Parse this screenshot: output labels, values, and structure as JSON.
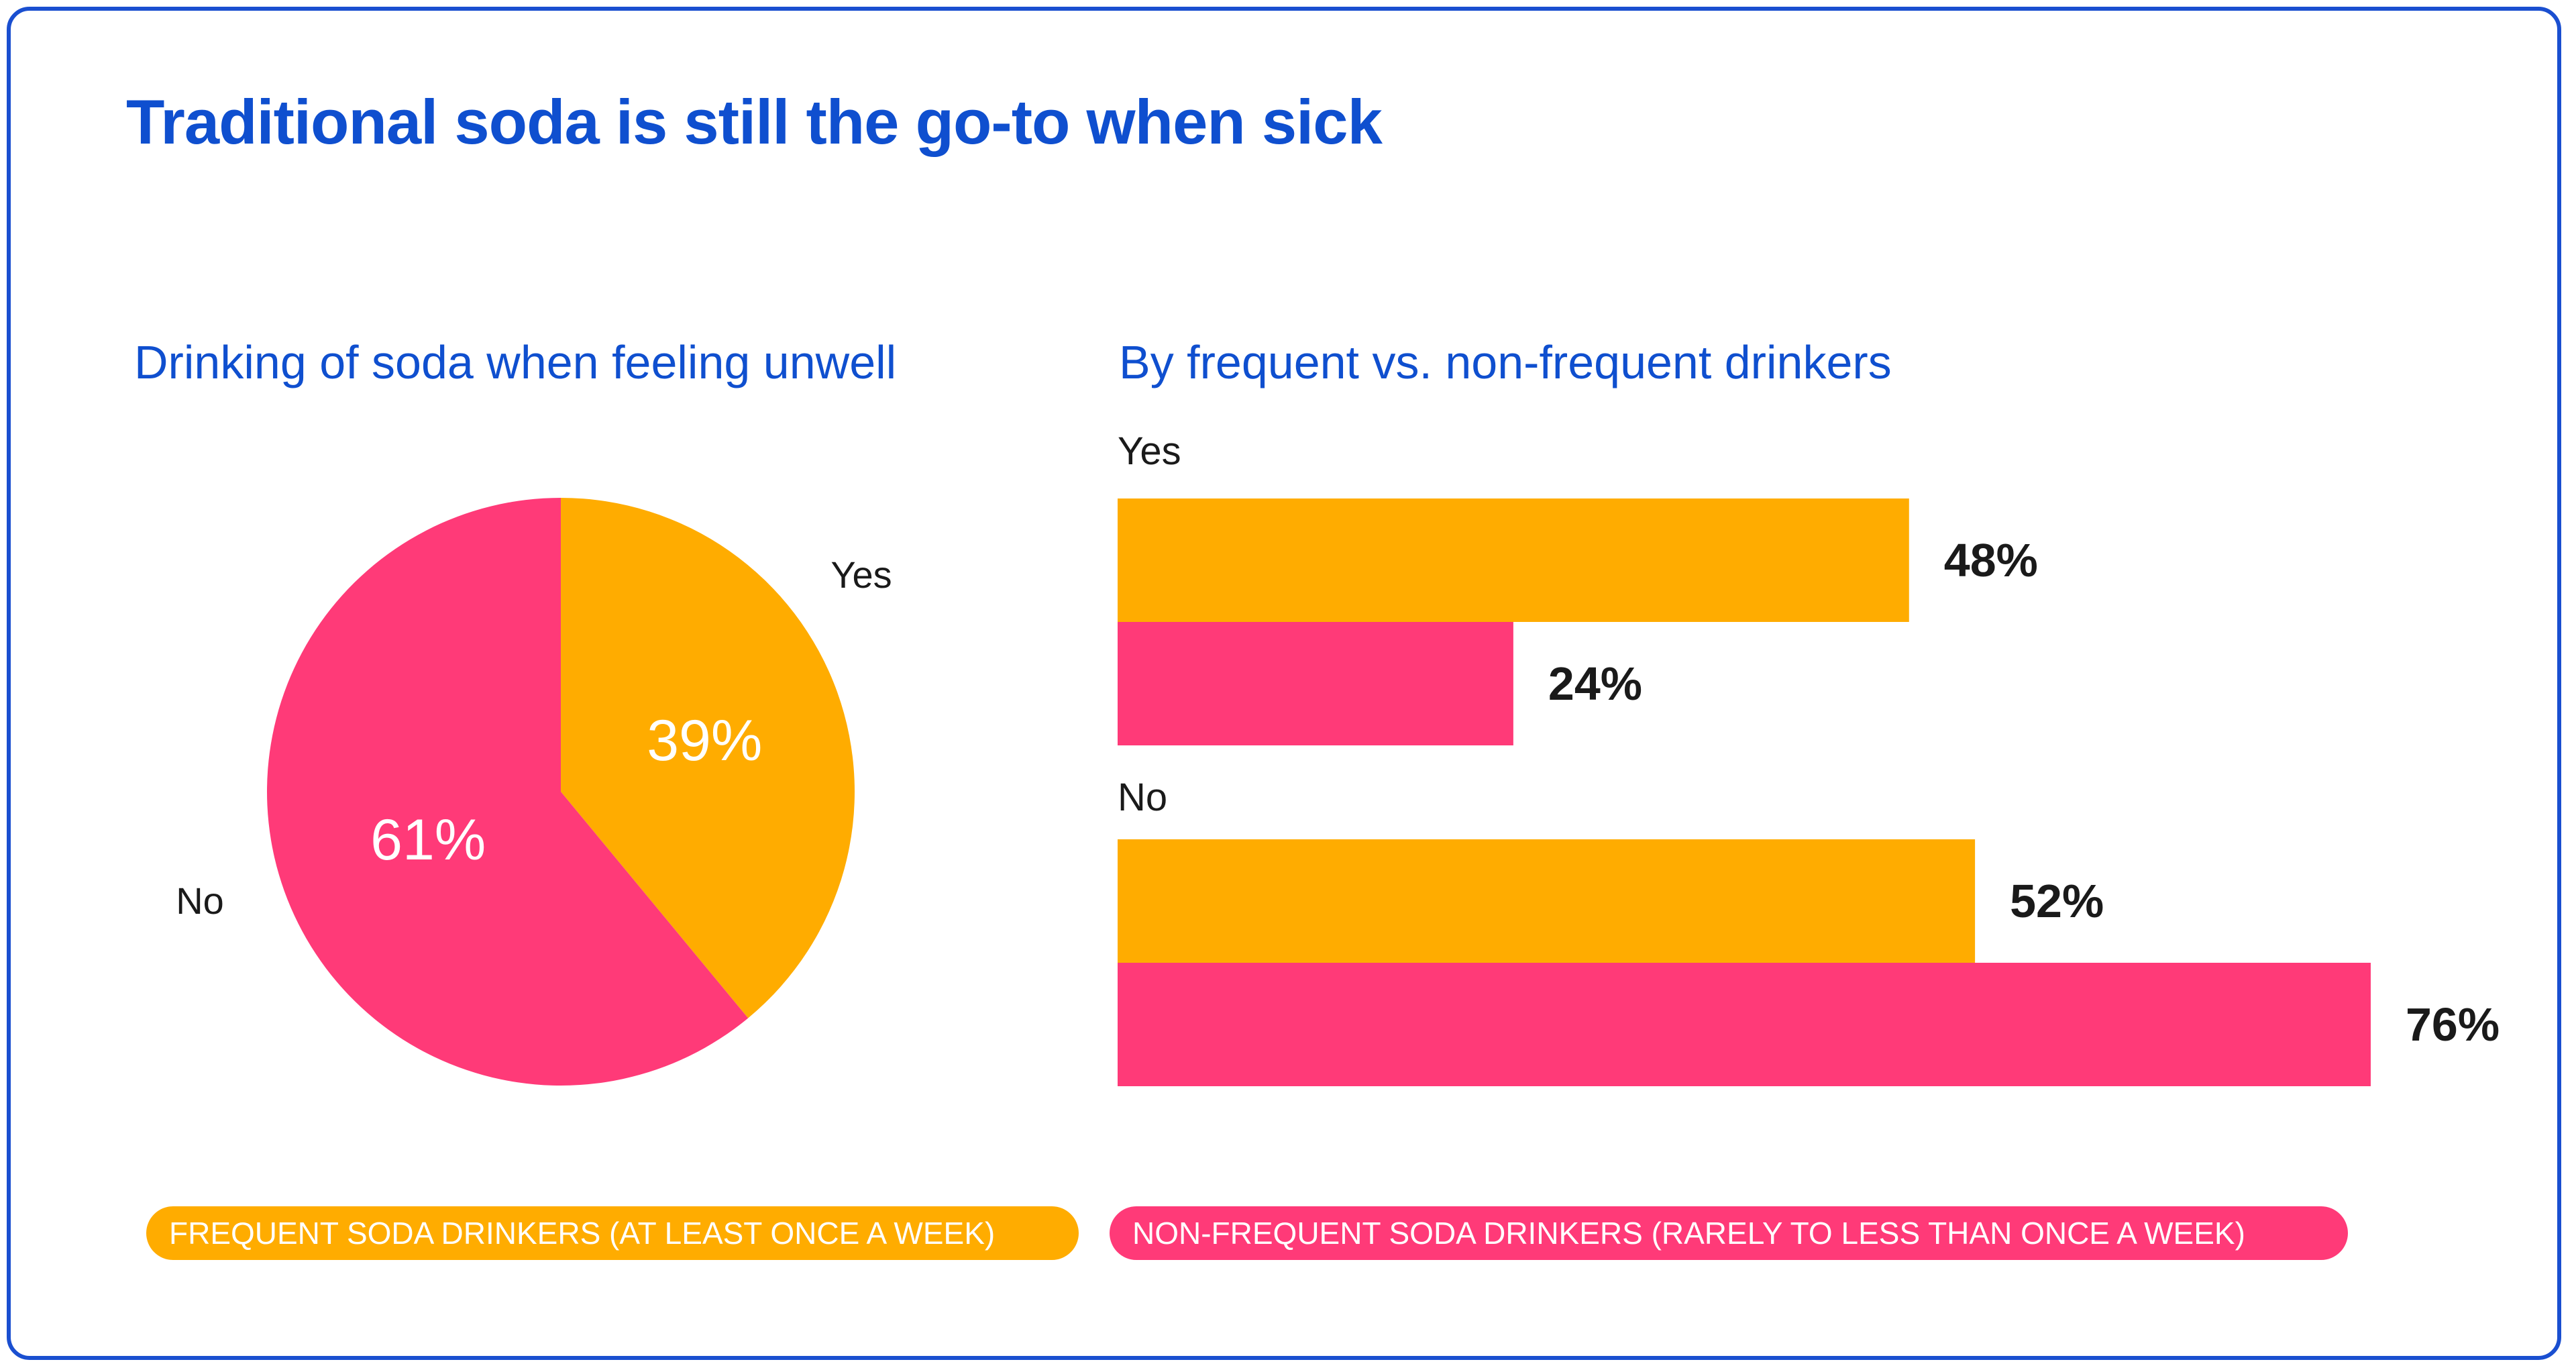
{
  "title": "Traditional soda is still the go-to when sick",
  "colors": {
    "frequent": "#FFAC00",
    "non_frequent": "#FF3A78",
    "title_blue": "#0f4fcf",
    "text_dark": "#1a1a1a"
  },
  "chart_data": [
    {
      "type": "pie",
      "title": "Drinking of soda when feeling unwell",
      "slices": [
        {
          "label": "Yes",
          "value": 39,
          "value_label": "39%"
        },
        {
          "label": "No",
          "value": 61,
          "value_label": "61%"
        }
      ]
    },
    {
      "type": "bar",
      "orientation": "horizontal",
      "title": "By frequent vs. non-frequent drinkers",
      "categories": [
        "Yes",
        "No"
      ],
      "series": [
        {
          "name": "FREQUENT SODA DRINKERS (AT LEAST ONCE A WEEK)",
          "values": [
            48,
            52
          ],
          "value_labels": [
            "48%",
            "52%"
          ]
        },
        {
          "name": "NON-FREQUENT SODA DRINKERS (RARELY TO LESS THAN ONCE A WEEK)",
          "values": [
            24,
            76
          ],
          "value_labels": [
            "24%",
            "76%"
          ]
        }
      ],
      "xlim": [
        0,
        76
      ]
    }
  ],
  "legend": [
    {
      "label": "FREQUENT SODA DRINKERS (AT LEAST ONCE A WEEK)"
    },
    {
      "label": "NON-FREQUENT SODA DRINKERS (RARELY TO LESS THAN ONCE A WEEK)"
    }
  ]
}
